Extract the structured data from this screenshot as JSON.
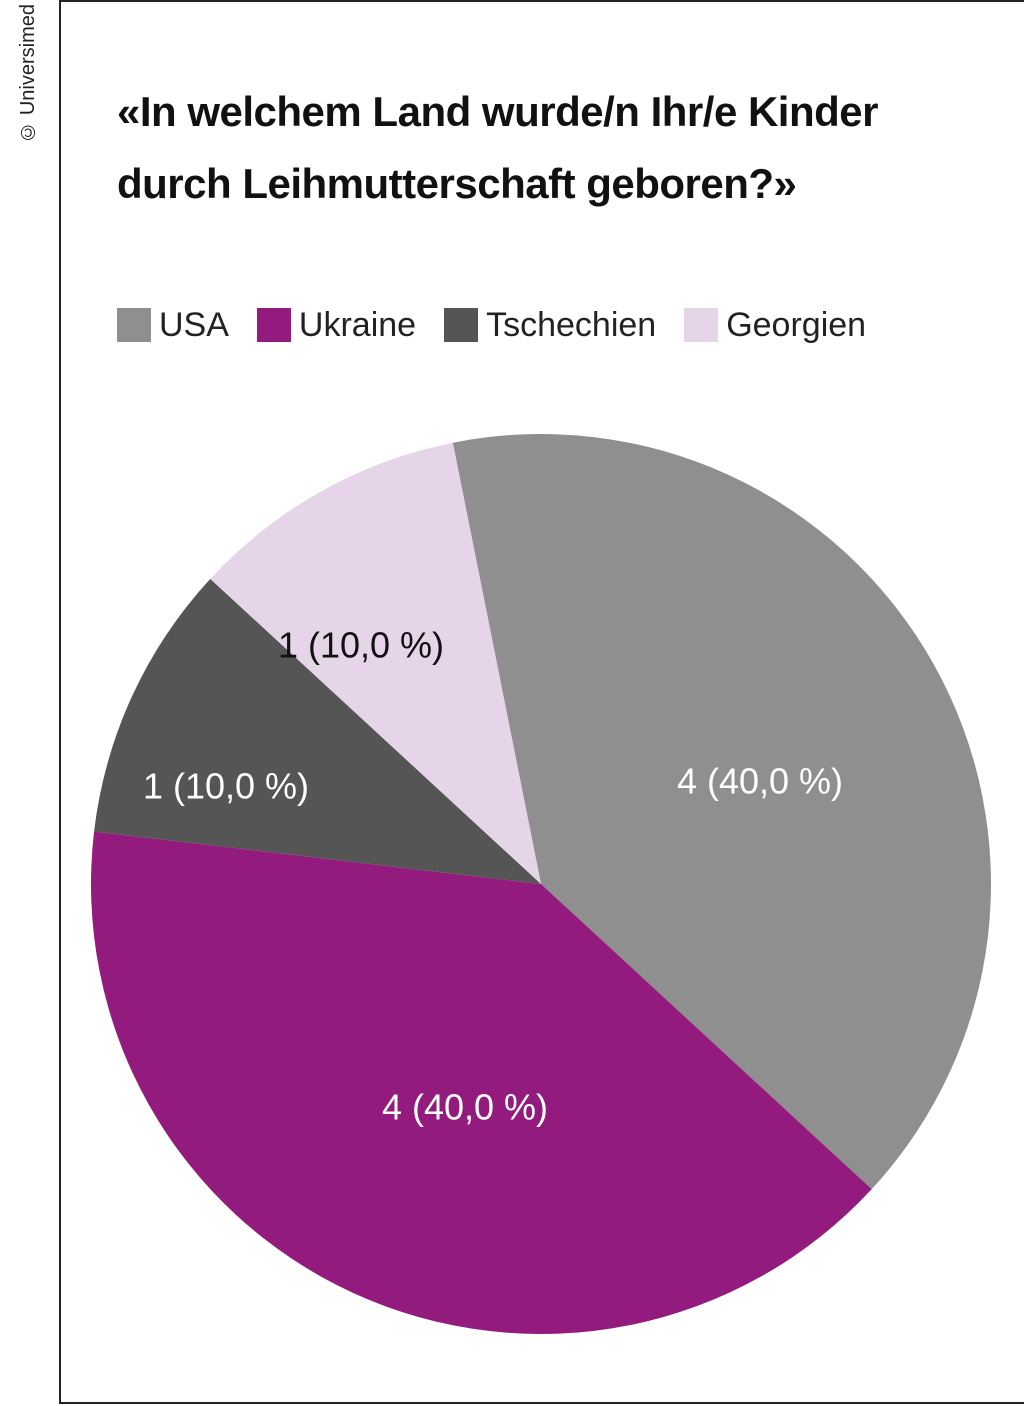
{
  "copyright": "© Universimed",
  "chart_data": {
    "type": "pie",
    "title": "«In welchem Land wurde/n Ihr/e Kinder durch Leihmutterschaft geboren?»",
    "title_lines": [
      "«In welchem Land wurde/n Ihr/e Kinder",
      "durch Leihmutterschaft geboren?»"
    ],
    "legend_position": "top",
    "slices": [
      {
        "label": "USA",
        "value": 4,
        "percent": 40.0,
        "color": "#8f8f8f",
        "data_label": "4 (40,0 %)",
        "label_color": "#ffffff"
      },
      {
        "label": "Ukraine",
        "value": 4,
        "percent": 40.0,
        "color": "#931b7d",
        "data_label": "4 (40,0 %)",
        "label_color": "#ffffff"
      },
      {
        "label": "Tschechien",
        "value": 1,
        "percent": 10.0,
        "color": "#555555",
        "data_label": "1 (10,0 %)",
        "label_color": "#ffffff"
      },
      {
        "label": "Georgien",
        "value": 1,
        "percent": 10.0,
        "color": "#e6d5e9",
        "data_label": "1 (10,0 %)",
        "label_color": "#111111"
      }
    ]
  }
}
